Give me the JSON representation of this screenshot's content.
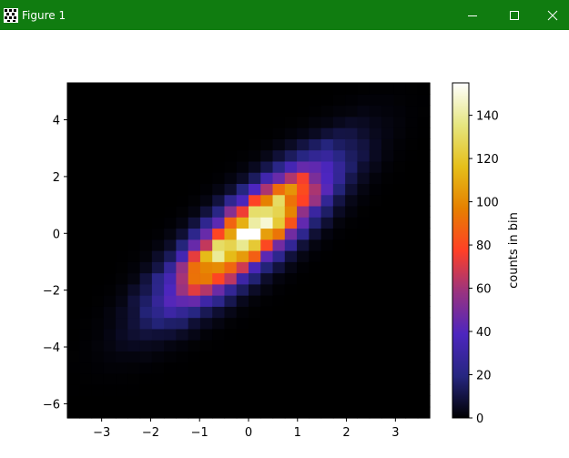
{
  "window": {
    "title": "Figure 1",
    "app_icon": "matplotlib-figure-icon",
    "controls": {
      "minimize_icon": "minimize-icon",
      "maximize_icon": "maximize-icon",
      "close_icon": "close-icon"
    },
    "titlebar_color": "#107c10"
  },
  "chart_data": {
    "type": "heatmap",
    "title": "",
    "xlabel": "",
    "ylabel": "",
    "colormap": "CMRmap",
    "xlim": [
      -3.7,
      3.7
    ],
    "ylim": [
      -6.5,
      5.3
    ],
    "xticks": [
      -3,
      -2,
      -1,
      0,
      1,
      2,
      3
    ],
    "xtick_labels": [
      "−3",
      "−2",
      "−1",
      "0",
      "1",
      "2",
      "3"
    ],
    "yticks": [
      -6,
      -4,
      -2,
      0,
      2,
      4
    ],
    "ytick_labels": [
      "−6",
      "−4",
      "−2",
      "0",
      "2",
      "4"
    ],
    "bins": [
      30,
      30
    ],
    "distribution": {
      "mean_x": 0.0,
      "mean_y": 0.0,
      "std_x": 1.0,
      "std_y": 1.5,
      "correlation": 0.83,
      "peak_count": 155
    },
    "colorbar": {
      "label": "counts in bin",
      "range": [
        0,
        155
      ],
      "ticks": [
        0,
        20,
        40,
        60,
        80,
        100,
        120,
        140
      ],
      "tick_labels": [
        "0",
        "20",
        "40",
        "60",
        "80",
        "100",
        "120",
        "140"
      ]
    },
    "grid": false,
    "legend": "none"
  }
}
